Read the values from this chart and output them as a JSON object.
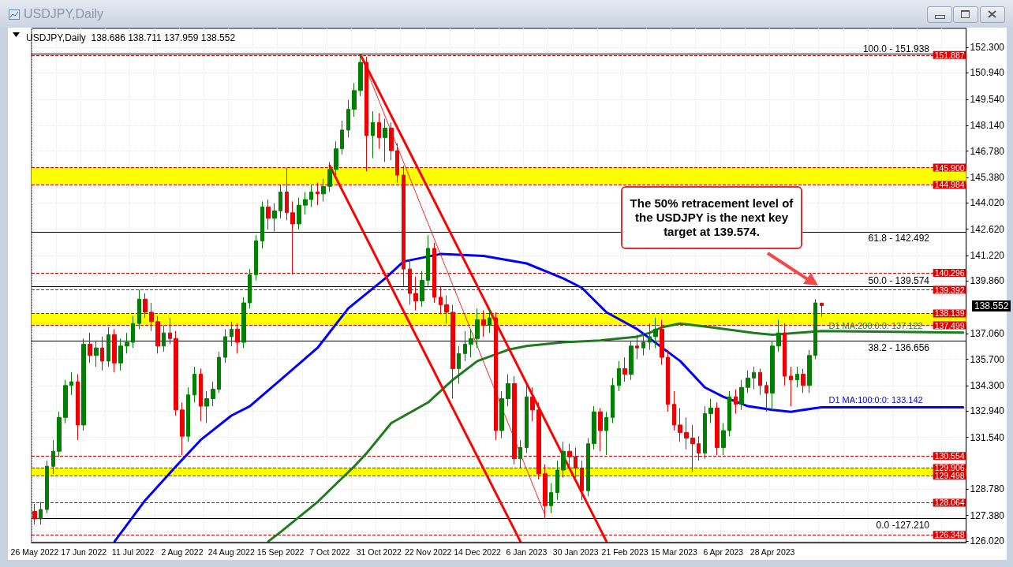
{
  "chart_data": {
    "type": "candlestick",
    "title": "USDJPY,Daily",
    "subtitle": "USDJPY,Daily  138.686 138.711 137.959 138.552",
    "categories": [
      "26 May 2022",
      null,
      null,
      null,
      null,
      null,
      null,
      null,
      "17 Jun 2022",
      null,
      null,
      null,
      null,
      null,
      null,
      null,
      "11 Jul 2022",
      null,
      null,
      null,
      null,
      null,
      null,
      null,
      "2 Aug 2022",
      null,
      null,
      null,
      null,
      null,
      null,
      null,
      "24 Aug 2022",
      null,
      null,
      null,
      null,
      null,
      null,
      null,
      "15 Sep 2022",
      null,
      null,
      null,
      null,
      null,
      null,
      null,
      "7 Oct 2022",
      null,
      null,
      null,
      null,
      null,
      null,
      null,
      "31 Oct 2022",
      null,
      null,
      null,
      null,
      null,
      null,
      null,
      "22 Nov 2022",
      null,
      null,
      null,
      null,
      null,
      null,
      null,
      "14 Dec 2022",
      null,
      null,
      null,
      null,
      null,
      null,
      null,
      "6 Jan 2023",
      null,
      null,
      null,
      null,
      null,
      null,
      null,
      "30 Jan 2023",
      null,
      null,
      null,
      null,
      null,
      null,
      null,
      "21 Feb 2023",
      null,
      null,
      null,
      null,
      null,
      null,
      null,
      "15 Mar 2023",
      null,
      null,
      null,
      null,
      null,
      null,
      null,
      "6 Apr 2023",
      null,
      null,
      null,
      null,
      null,
      null,
      null,
      "28 Apr 2023",
      null,
      null,
      null,
      null,
      null,
      null,
      null,
      null,
      null,
      null,
      null,
      null,
      null,
      null,
      null,
      null,
      null,
      null,
      null,
      null,
      null,
      null,
      null,
      null,
      null,
      null,
      null,
      null,
      null,
      null,
      null
    ],
    "ohlc": [
      [
        127.6,
        128.0,
        126.9,
        127.2
      ],
      [
        127.2,
        128.1,
        126.9,
        127.7
      ],
      [
        127.7,
        130.3,
        127.5,
        130.0
      ],
      [
        130.0,
        131.4,
        129.6,
        130.8
      ],
      [
        130.8,
        132.9,
        130.5,
        132.6
      ],
      [
        132.6,
        134.6,
        132.3,
        134.3
      ],
      [
        134.3,
        135.0,
        133.8,
        134.5
      ],
      [
        134.5,
        134.9,
        131.4,
        132.2
      ],
      [
        132.2,
        136.8,
        131.9,
        136.5
      ],
      [
        136.5,
        137.1,
        135.5,
        135.9
      ],
      [
        135.9,
        136.7,
        135.3,
        136.3
      ],
      [
        136.3,
        136.9,
        135.1,
        135.6
      ],
      [
        135.6,
        137.4,
        135.3,
        137.0
      ],
      [
        137.0,
        137.3,
        135.0,
        135.5
      ],
      [
        135.5,
        136.8,
        135.1,
        136.4
      ],
      [
        136.4,
        137.1,
        136.0,
        136.6
      ],
      [
        136.6,
        138.0,
        136.3,
        137.6
      ],
      [
        137.6,
        139.4,
        137.3,
        138.9
      ],
      [
        138.9,
        139.2,
        137.9,
        138.2
      ],
      [
        138.2,
        138.7,
        137.2,
        137.7
      ],
      [
        137.7,
        138.0,
        136.0,
        136.4
      ],
      [
        136.4,
        137.5,
        136.1,
        137.1
      ],
      [
        137.1,
        137.9,
        136.5,
        136.8
      ],
      [
        136.8,
        137.2,
        132.7,
        133.0
      ],
      [
        133.0,
        133.4,
        130.6,
        131.6
      ],
      [
        131.6,
        134.2,
        131.3,
        133.8
      ],
      [
        133.8,
        135.3,
        133.4,
        134.9
      ],
      [
        134.9,
        135.2,
        132.4,
        133.2
      ],
      [
        133.2,
        134.0,
        132.3,
        133.6
      ],
      [
        133.6,
        134.5,
        133.2,
        134.1
      ],
      [
        134.1,
        136.1,
        133.9,
        135.8
      ],
      [
        135.8,
        137.3,
        135.5,
        136.9
      ],
      [
        136.9,
        137.7,
        136.4,
        137.3
      ],
      [
        137.3,
        137.6,
        136.0,
        136.6
      ],
      [
        136.6,
        139.0,
        136.3,
        138.7
      ],
      [
        138.7,
        140.5,
        138.4,
        140.2
      ],
      [
        140.2,
        142.3,
        139.9,
        142.0
      ],
      [
        142.0,
        144.1,
        141.6,
        143.8
      ],
      [
        143.8,
        144.2,
        142.6,
        143.2
      ],
      [
        143.2,
        144.0,
        142.5,
        143.6
      ],
      [
        143.6,
        145.0,
        143.2,
        144.6
      ],
      [
        144.6,
        145.9,
        143.1,
        143.5
      ],
      [
        143.5,
        144.1,
        140.2,
        142.9
      ],
      [
        142.9,
        144.3,
        142.6,
        143.9
      ],
      [
        143.9,
        144.6,
        143.4,
        144.2
      ],
      [
        144.2,
        145.0,
        143.8,
        144.6
      ],
      [
        144.6,
        145.1,
        143.9,
        144.5
      ],
      [
        144.5,
        145.3,
        144.1,
        144.9
      ],
      [
        144.9,
        146.2,
        144.6,
        145.8
      ],
      [
        145.8,
        147.3,
        145.5,
        146.9
      ],
      [
        146.9,
        148.4,
        146.6,
        147.9
      ],
      [
        147.9,
        149.5,
        147.5,
        149.0
      ],
      [
        149.0,
        150.4,
        148.6,
        150.0
      ],
      [
        150.0,
        151.94,
        149.7,
        151.5
      ],
      [
        151.5,
        151.8,
        145.7,
        147.6
      ],
      [
        147.6,
        148.9,
        146.4,
        148.3
      ],
      [
        148.3,
        148.8,
        146.9,
        147.5
      ],
      [
        147.5,
        148.5,
        146.2,
        148.0
      ],
      [
        148.0,
        148.3,
        146.3,
        146.8
      ],
      [
        146.8,
        147.2,
        145.1,
        145.5
      ],
      [
        145.5,
        146.0,
        139.6,
        140.5
      ],
      [
        140.5,
        141.0,
        138.6,
        139.2
      ],
      [
        139.2,
        140.1,
        138.3,
        138.8
      ],
      [
        138.8,
        140.4,
        138.5,
        139.9
      ],
      [
        139.9,
        142.3,
        139.6,
        141.6
      ],
      [
        141.6,
        141.9,
        138.7,
        139.0
      ],
      [
        139.0,
        139.6,
        138.1,
        138.6
      ],
      [
        138.6,
        139.1,
        137.6,
        138.2
      ],
      [
        138.2,
        138.6,
        133.6,
        135.2
      ],
      [
        135.2,
        136.4,
        134.4,
        136.0
      ],
      [
        136.0,
        137.2,
        135.6,
        136.5
      ],
      [
        136.5,
        137.3,
        135.8,
        136.8
      ],
      [
        136.8,
        138.4,
        136.3,
        137.8
      ],
      [
        137.8,
        138.3,
        136.9,
        137.5
      ],
      [
        137.5,
        138.4,
        137.1,
        137.9
      ],
      [
        137.9,
        138.2,
        131.4,
        131.9
      ],
      [
        131.9,
        134.0,
        131.5,
        133.6
      ],
      [
        133.6,
        134.9,
        133.2,
        134.4
      ],
      [
        134.4,
        134.8,
        130.1,
        130.4
      ],
      [
        130.4,
        131.4,
        129.9,
        131.0
      ],
      [
        131.0,
        134.4,
        130.7,
        133.7
      ],
      [
        133.7,
        134.2,
        132.4,
        133.0
      ],
      [
        133.0,
        133.4,
        129.3,
        129.6
      ],
      [
        129.6,
        130.1,
        127.2,
        127.9
      ],
      [
        127.9,
        129.1,
        127.5,
        128.6
      ],
      [
        128.6,
        130.3,
        128.2,
        129.8
      ],
      [
        129.8,
        131.3,
        129.4,
        130.8
      ],
      [
        130.8,
        131.2,
        129.9,
        130.5
      ],
      [
        130.5,
        131.0,
        129.4,
        129.9
      ],
      [
        129.9,
        130.3,
        128.2,
        128.7
      ],
      [
        128.7,
        131.5,
        128.4,
        131.2
      ],
      [
        131.2,
        133.2,
        130.9,
        132.9
      ],
      [
        132.9,
        133.1,
        130.8,
        131.9
      ],
      [
        131.9,
        132.9,
        130.6,
        132.6
      ],
      [
        132.6,
        134.7,
        132.3,
        134.3
      ],
      [
        134.3,
        135.6,
        134.0,
        135.2
      ],
      [
        135.2,
        135.8,
        134.5,
        134.9
      ],
      [
        134.9,
        136.7,
        134.6,
        136.4
      ],
      [
        136.4,
        137.0,
        135.7,
        136.3
      ],
      [
        136.3,
        137.1,
        135.9,
        136.6
      ],
      [
        136.6,
        137.6,
        136.2,
        136.9
      ],
      [
        136.9,
        137.9,
        136.3,
        137.3
      ],
      [
        137.3,
        137.8,
        135.4,
        135.8
      ],
      [
        135.8,
        136.2,
        132.9,
        133.3
      ],
      [
        133.3,
        134.0,
        131.9,
        132.2
      ],
      [
        132.2,
        133.1,
        131.3,
        131.8
      ],
      [
        131.8,
        132.6,
        130.9,
        131.5
      ],
      [
        131.5,
        132.2,
        129.7,
        131.2
      ],
      [
        131.2,
        131.6,
        130.3,
        130.7
      ],
      [
        130.7,
        133.2,
        130.4,
        132.8
      ],
      [
        132.8,
        133.6,
        132.3,
        133.1
      ],
      [
        133.1,
        133.4,
        130.6,
        131.0
      ],
      [
        131.0,
        132.3,
        130.6,
        131.9
      ],
      [
        131.9,
        134.0,
        131.6,
        133.7
      ],
      [
        133.7,
        134.1,
        132.8,
        133.3
      ],
      [
        133.3,
        134.6,
        133.0,
        134.2
      ],
      [
        134.2,
        135.1,
        133.9,
        134.7
      ],
      [
        134.7,
        135.3,
        134.1,
        135.0
      ],
      [
        135.0,
        135.2,
        133.8,
        134.3
      ],
      [
        134.3,
        134.5,
        132.9,
        133.9
      ],
      [
        133.9,
        136.7,
        133.0,
        136.4
      ],
      [
        136.4,
        137.8,
        136.1,
        137.1
      ],
      [
        137.1,
        137.6,
        134.3,
        134.8
      ],
      [
        134.8,
        135.3,
        133.2,
        134.6
      ],
      [
        134.6,
        135.3,
        134.2,
        134.9
      ],
      [
        134.9,
        135.2,
        133.9,
        134.3
      ],
      [
        134.3,
        136.2,
        133.9,
        135.9
      ],
      [
        135.9,
        138.9,
        135.7,
        138.7
      ],
      [
        138.686,
        138.711,
        137.959,
        138.552
      ],
      null,
      null,
      null,
      null,
      null,
      null,
      null,
      null,
      null,
      null,
      null,
      null,
      null,
      null,
      null,
      null,
      null,
      null,
      null,
      null,
      null,
      null,
      null
    ],
    "colors": [
      "#f00000",
      "#008000",
      "#008000",
      "#008000",
      "#008000",
      "#008000",
      "#008000",
      "#f00000",
      "#008000",
      "#f00000",
      "#008000",
      "#f00000",
      "#008000",
      "#f00000",
      "#008000",
      "#008000",
      "#008000",
      "#008000",
      "#f00000",
      "#f00000",
      "#f00000",
      "#008000",
      "#f00000",
      "#f00000",
      "#f00000",
      "#008000",
      "#008000",
      "#f00000",
      "#008000",
      "#008000",
      "#008000",
      "#008000",
      "#008000",
      "#f00000",
      "#008000",
      "#008000",
      "#008000",
      "#008000",
      "#f00000",
      "#008000",
      "#008000",
      "#f00000",
      "#f00000",
      "#008000",
      "#008000",
      "#008000",
      "#f00000",
      "#008000",
      "#008000",
      "#008000",
      "#008000",
      "#008000",
      "#008000",
      "#008000",
      "#f00000",
      "#008000",
      "#f00000",
      "#008000",
      "#f00000",
      "#f00000",
      "#f00000",
      "#f00000",
      "#f00000",
      "#008000",
      "#008000",
      "#f00000",
      "#f00000",
      "#f00000",
      "#f00000",
      "#008000",
      "#008000",
      "#008000",
      "#008000",
      "#f00000",
      "#008000",
      "#f00000",
      "#008000",
      "#008000",
      "#f00000",
      "#008000",
      "#008000",
      "#f00000",
      "#f00000",
      "#f00000",
      "#008000",
      "#008000",
      "#008000",
      "#f00000",
      "#f00000",
      "#f00000",
      "#008000",
      "#008000",
      "#f00000",
      "#008000",
      "#008000",
      "#008000",
      "#f00000",
      "#008000",
      "#f00000",
      "#008000",
      "#008000",
      "#008000",
      "#f00000",
      "#f00000",
      "#f00000",
      "#f00000",
      "#f00000",
      "#f00000",
      "#f00000",
      "#008000",
      "#008000",
      "#f00000",
      "#008000",
      "#008000",
      "#f00000",
      "#008000",
      "#008000",
      "#008000",
      "#f00000",
      "#f00000",
      "#008000",
      "#008000",
      "#f00000",
      "#f00000",
      "#008000",
      "#f00000",
      "#008000",
      "#008000",
      "#f00000",
      null,
      null,
      null,
      null,
      null,
      null,
      null,
      null,
      null,
      null,
      null,
      null,
      null,
      null,
      null,
      null,
      null,
      null,
      null,
      null,
      null,
      null,
      null
    ],
    "series": [
      {
        "type": "line",
        "name": "D1 MA:200:0:0: 137.122",
        "color": "#1e7b1e",
        "values": [
          null,
          null,
          null,
          null,
          null,
          null,
          null,
          null,
          null,
          null,
          null,
          null,
          null,
          null,
          null,
          null,
          null,
          null,
          null,
          null,
          null,
          null,
          null,
          null,
          null,
          null,
          null,
          null,
          null,
          null,
          null,
          null,
          null,
          null,
          null,
          null,
          null,
          null,
          126.0,
          null,
          126.5,
          null,
          null,
          null,
          null,
          null,
          128.1,
          null,
          null,
          null,
          null,
          null,
          130.0,
          null,
          130.7,
          null,
          null,
          null,
          132.3,
          null,
          null,
          null,
          null,
          null,
          133.4,
          null,
          null,
          null,
          134.6,
          null,
          null,
          null,
          135.6,
          null,
          null,
          null,
          null,
          136.2,
          null,
          null,
          136.4,
          null,
          null,
          null,
          null,
          null,
          136.6,
          null,
          null,
          null,
          null,
          null,
          136.7,
          null,
          null,
          null,
          null,
          null,
          136.9,
          null,
          137.1,
          null,
          137.4,
          null,
          null,
          137.6,
          null,
          null,
          null,
          null,
          137.4,
          null,
          null,
          null,
          null,
          null,
          null,
          137.1,
          null,
          null,
          137.0,
          null,
          null,
          null,
          null,
          null,
          null,
          null,
          137.2,
          null,
          null,
          null,
          null,
          null,
          null,
          null,
          null,
          null,
          null,
          null,
          null,
          null,
          null,
          null,
          null,
          null,
          null,
          null,
          null,
          null,
          null,
          137.122
        ]
      },
      {
        "type": "line",
        "name": "D1 MA:100:0:0: 133.142",
        "color": "#0000ff",
        "values": [
          null,
          null,
          null,
          null,
          null,
          null,
          null,
          null,
          null,
          null,
          null,
          null,
          null,
          126.0,
          null,
          null,
          null,
          null,
          128.2,
          null,
          null,
          null,
          null,
          130.0,
          null,
          null,
          null,
          131.4,
          null,
          null,
          null,
          null,
          132.7,
          null,
          null,
          133.2,
          null,
          null,
          null,
          null,
          134.6,
          null,
          null,
          null,
          null,
          null,
          136.3,
          null,
          null,
          null,
          null,
          138.4,
          null,
          null,
          null,
          null,
          null,
          140.0,
          null,
          null,
          140.9,
          null,
          null,
          null,
          null,
          null,
          141.3,
          null,
          null,
          null,
          null,
          null,
          null,
          141.2,
          null,
          null,
          null,
          null,
          null,
          null,
          140.8,
          null,
          null,
          null,
          null,
          null,
          140.0,
          null,
          null,
          139.5,
          null,
          null,
          null,
          138.2,
          null,
          null,
          null,
          null,
          137.3,
          null,
          null,
          null,
          null,
          null,
          null,
          135.6,
          null,
          null,
          null,
          134.2,
          null,
          null,
          133.7,
          null,
          null,
          null,
          133.2,
          null,
          null,
          null,
          133.0,
          null,
          null,
          132.9,
          null,
          null,
          null,
          133.1,
          133.142,
          null,
          null,
          null,
          null,
          null,
          null,
          null,
          null,
          null,
          null,
          null,
          null,
          null,
          null,
          null,
          null,
          null,
          null,
          null,
          null,
          null,
          null,
          133.142
        ]
      },
      {
        "type": "line",
        "color": "#ff0000",
        "line_style": "solid",
        "values": [
          null,
          null,
          null,
          null,
          null,
          null,
          null,
          null,
          null,
          null,
          null,
          null,
          null,
          null,
          null,
          null,
          null,
          null,
          null,
          null,
          null,
          null,
          null,
          null,
          null,
          null,
          null,
          null,
          null,
          null,
          null,
          null,
          null,
          null,
          null,
          null,
          null,
          null,
          null,
          null,
          null,
          null,
          null,
          null,
          null,
          null,
          null,
          null,
          null,
          null,
          null,
          null,
          null,
          151.9,
          null,
          null,
          null,
          null,
          null,
          null,
          null,
          null,
          null,
          null,
          null,
          null,
          null,
          null,
          null,
          null,
          null,
          null,
          null,
          null,
          null,
          null,
          null,
          null,
          null,
          null,
          null,
          null,
          null,
          null,
          null,
          null,
          null,
          null,
          null,
          null,
          null,
          null,
          null,
          126.0,
          null,
          null,
          null,
          null,
          null,
          null,
          null,
          null,
          null,
          null,
          null,
          null,
          null,
          null,
          null,
          null,
          null,
          null,
          null,
          null,
          null,
          null,
          null,
          null,
          null,
          null,
          null,
          null,
          null,
          null,
          null,
          null,
          null,
          null,
          null,
          null,
          null,
          null,
          null,
          null,
          null,
          null,
          null,
          null,
          null,
          null,
          null,
          null,
          null,
          null,
          null,
          null,
          null,
          null,
          null,
          null,
          null,
          null
        ]
      },
      {
        "type": "line",
        "color": "#ff0000",
        "line_style": "solid",
        "values": [
          null,
          null,
          null,
          null,
          null,
          null,
          null,
          null,
          null,
          null,
          null,
          null,
          null,
          null,
          null,
          null,
          null,
          null,
          null,
          null,
          null,
          null,
          null,
          null,
          null,
          null,
          null,
          null,
          null,
          null,
          null,
          null,
          null,
          null,
          null,
          null,
          null,
          null,
          null,
          null,
          null,
          null,
          null,
          null,
          null,
          null,
          null,
          null,
          146.0,
          null,
          null,
          null,
          null,
          null,
          null,
          null,
          null,
          null,
          null,
          null,
          null,
          null,
          null,
          null,
          null,
          null,
          null,
          null,
          null,
          null,
          null,
          null,
          null,
          null,
          null,
          null,
          null,
          null,
          null,
          126.0,
          null,
          null,
          null,
          null,
          null,
          null,
          null,
          null,
          null,
          null,
          null,
          null,
          null,
          null,
          null,
          null,
          null,
          null,
          null,
          null,
          null,
          null,
          null,
          null,
          null,
          null,
          null,
          null,
          null,
          null,
          null,
          null,
          null,
          null,
          null,
          null,
          null,
          null,
          null,
          null,
          null,
          null,
          null,
          null,
          null,
          null,
          null,
          null,
          null,
          null,
          null,
          null,
          null,
          null,
          null,
          null,
          null,
          null,
          null,
          null,
          null,
          null,
          null,
          null,
          null,
          null,
          null,
          null,
          null,
          null,
          null,
          null
        ]
      },
      {
        "type": "line",
        "color": "#ff0000",
        "line_style": "dotted",
        "values": [
          null,
          null,
          null,
          null,
          null,
          null,
          null,
          null,
          null,
          null,
          null,
          null,
          null,
          null,
          null,
          null,
          null,
          null,
          null,
          null,
          null,
          null,
          null,
          null,
          null,
          null,
          null,
          null,
          null,
          null,
          null,
          null,
          null,
          null,
          null,
          null,
          null,
          null,
          null,
          null,
          null,
          null,
          null,
          null,
          null,
          null,
          null,
          null,
          null,
          null,
          null,
          null,
          null,
          151.9,
          null,
          null,
          null,
          null,
          null,
          null,
          null,
          null,
          null,
          null,
          null,
          null,
          null,
          null,
          null,
          null,
          null,
          null,
          null,
          null,
          null,
          null,
          null,
          null,
          null,
          null,
          null,
          null,
          null,
          127.4,
          null,
          null,
          null,
          null,
          null,
          null,
          null,
          null,
          null,
          null,
          null,
          null,
          null,
          null,
          null,
          null,
          null,
          null,
          null,
          null,
          null,
          null,
          null,
          null,
          null,
          null,
          null,
          null,
          null,
          null,
          null,
          null,
          null,
          null,
          null,
          null,
          null,
          null,
          null,
          null,
          null,
          null,
          null,
          null,
          null,
          null,
          null,
          null,
          null,
          null,
          null,
          null,
          null,
          null,
          null,
          null,
          null,
          null,
          null,
          null,
          null,
          null,
          null,
          null,
          null,
          null,
          null,
          null
        ]
      }
    ],
    "ylim": [
      125.94,
      153.31
    ],
    "yticks": [
      {
        "value": 152.3,
        "label": "152.300"
      },
      {
        "value": 150.94,
        "label": "150.940"
      },
      {
        "value": 149.54,
        "label": "149.540"
      },
      {
        "value": 148.14,
        "label": "148.140"
      },
      {
        "value": 146.78,
        "label": "146.780"
      },
      {
        "value": 145.38,
        "label": "145.380"
      },
      {
        "value": 144.02,
        "label": "144.020"
      },
      {
        "value": 142.62,
        "label": "142.620"
      },
      {
        "value": 141.22,
        "label": "141.220"
      },
      {
        "value": 139.86,
        "label": "139.860"
      },
      {
        "value": 137.06,
        "label": "137.060"
      },
      {
        "value": 135.7,
        "label": "135.700"
      },
      {
        "value": 134.3,
        "label": "134.300"
      },
      {
        "value": 132.94,
        "label": "132.940"
      },
      {
        "value": 131.54,
        "label": "131.540"
      },
      {
        "value": 128.78,
        "label": "128.780"
      },
      {
        "value": 127.38,
        "label": "127.380"
      },
      {
        "value": 126.02,
        "label": "126.020"
      }
    ],
    "ref_lines": [
      {
        "axis": "y",
        "value": 151.887,
        "label": "151.887",
        "color": "#e00000",
        "line_style": "dashed"
      },
      {
        "axis": "y",
        "value": 145.9,
        "label": "145.900",
        "color": "#e00000",
        "line_style": "dashed"
      },
      {
        "axis": "y",
        "value": 144.984,
        "label": "144.984",
        "color": "#e00000",
        "line_style": "dashed"
      },
      {
        "axis": "y",
        "value": 140.296,
        "label": "140.296",
        "color": "#e00000",
        "line_style": "dashed"
      },
      {
        "axis": "y",
        "value": 139.392,
        "label": "139.392",
        "color": "#e00000",
        "line_style": "dashed"
      },
      {
        "axis": "y",
        "value": 138.139,
        "label": "138.139",
        "color": "#e00000",
        "line_style": "dashed"
      },
      {
        "axis": "y",
        "value": 137.499,
        "label": "137.499",
        "color": "#e00000",
        "line_style": "dashed"
      },
      {
        "axis": "y",
        "value": 130.554,
        "label": "130.554",
        "color": "#e00000",
        "line_style": "dashed"
      },
      {
        "axis": "y",
        "value": 129.906,
        "label": "129.906",
        "color": "#e00000",
        "line_style": "dashed"
      },
      {
        "axis": "y",
        "value": 129.498,
        "label": "129.498",
        "color": "#e00000",
        "line_style": "dashed"
      },
      {
        "axis": "y",
        "value": 128.064,
        "label": "128.064",
        "color": "#e00000",
        "line_style": "dashed"
      },
      {
        "axis": "y",
        "value": 126.348,
        "label": "126.348",
        "color": "#e00000",
        "line_style": "dashed"
      },
      {
        "axis": "y",
        "value": 151.938,
        "color": "#000000",
        "line_style": "solid"
      },
      {
        "axis": "y",
        "value": 142.492,
        "color": "#000000",
        "line_style": "solid"
      },
      {
        "axis": "y",
        "value": 139.574,
        "color": "#000000",
        "line_style": "solid"
      },
      {
        "axis": "y",
        "value": 136.656,
        "color": "#000000",
        "line_style": "solid"
      },
      {
        "axis": "y",
        "value": 127.21,
        "color": "#000000",
        "line_style": "solid"
      }
    ],
    "bands": [
      {
        "axis": "y",
        "from": 144.984,
        "to": 145.9,
        "color": "#ffff00"
      },
      {
        "axis": "y",
        "from": 137.499,
        "to": 138.139,
        "color": "#ffff00"
      },
      {
        "axis": "y",
        "from": 129.498,
        "to": 129.906,
        "color": "#ffff00"
      }
    ],
    "annotations": [
      "The 50% retracement level of the USDJPY is the next key target at 139.574.",
      "138.552",
      {
        "text": "100.0 - 151.938",
        "y": 151.938
      },
      {
        "text": "61.8 - 142.492",
        "y": 142.492
      },
      {
        "text": "50.0 - 139.574",
        "y": 139.574
      },
      {
        "text": "38.2 - 136.656",
        "y": 136.656
      },
      {
        "text": "0.0 -127.210",
        "y": 127.21
      }
    ],
    "grid": true,
    "legend": false
  }
}
